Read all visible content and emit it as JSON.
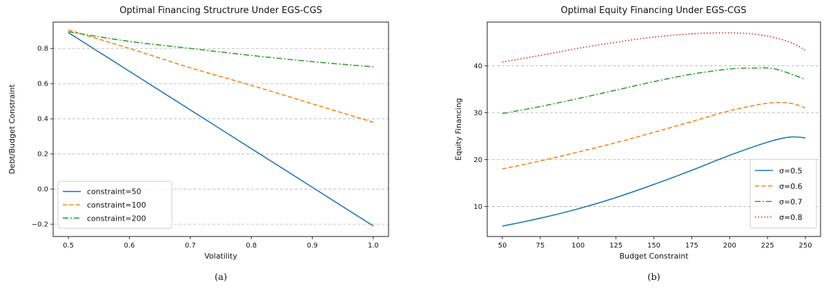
{
  "chart_data": [
    {
      "type": "line",
      "title": "Optimal Financing Structrure Under EGS-CGS",
      "xlabel": "Volatility",
      "ylabel": "Debt/Budget Constraint",
      "caption": "(a)",
      "xlim": [
        0.475,
        1.025
      ],
      "ylim": [
        -0.27,
        0.95
      ],
      "xticks": [
        0.5,
        0.6,
        0.7,
        0.8,
        0.9,
        1.0
      ],
      "xtick_labels": [
        "0.5",
        "0.6",
        "0.7",
        "0.8",
        "0.9",
        "1.0"
      ],
      "yticks": [
        -0.2,
        0.0,
        0.2,
        0.4,
        0.6,
        0.8
      ],
      "ytick_labels": [
        "−0.2",
        "0.0",
        "0.2",
        "0.4",
        "0.6",
        "0.8"
      ],
      "grid": "horizontal dashed",
      "legend": "lower-left",
      "series": [
        {
          "name": "constraint=50",
          "color": "#1f77b4",
          "style": "solid",
          "x": [
            0.5,
            0.6,
            0.7,
            0.8,
            0.9,
            1.0
          ],
          "y": [
            0.89,
            0.67,
            0.45,
            0.23,
            0.01,
            -0.21
          ]
        },
        {
          "name": "constraint=100",
          "color": "#ff7f0e",
          "style": "dashed",
          "x": [
            0.5,
            0.6,
            0.7,
            0.8,
            0.9,
            1.0
          ],
          "y": [
            0.905,
            0.8,
            0.69,
            0.59,
            0.485,
            0.38
          ]
        },
        {
          "name": "constraint=200",
          "color": "#2ca02c",
          "style": "dashdot",
          "x": [
            0.5,
            0.6,
            0.7,
            0.8,
            0.9,
            1.0
          ],
          "y": [
            0.895,
            0.84,
            0.8,
            0.76,
            0.725,
            0.695
          ]
        }
      ]
    },
    {
      "type": "line",
      "title": "Optimal Equity Financing Under EGS-CGS",
      "xlabel": "Budget Constraint",
      "ylabel": "Equity Financing",
      "caption": "(b)",
      "xlim": [
        40,
        260
      ],
      "ylim": [
        3.6,
        49.3
      ],
      "xticks": [
        50,
        75,
        100,
        125,
        150,
        175,
        200,
        225,
        250
      ],
      "xtick_labels": [
        "50",
        "75",
        "100",
        "125",
        "150",
        "175",
        "200",
        "225",
        "250"
      ],
      "yticks": [
        10,
        20,
        30,
        40
      ],
      "ytick_labels": [
        "10",
        "20",
        "30",
        "40"
      ],
      "grid": "horizontal dashed",
      "legend": "lower-right",
      "series": [
        {
          "name": "σ=0.5",
          "color": "#1f77b4",
          "style": "solid",
          "x": [
            50,
            75,
            100,
            125,
            150,
            175,
            200,
            225,
            240,
            250
          ],
          "y": [
            5.8,
            7.5,
            9.5,
            11.9,
            14.7,
            17.7,
            20.9,
            23.7,
            24.8,
            24.6
          ]
        },
        {
          "name": "σ=0.6",
          "color": "#ff7f0e",
          "style": "dashed",
          "x": [
            50,
            75,
            100,
            125,
            150,
            175,
            200,
            225,
            240,
            250
          ],
          "y": [
            18.0,
            19.7,
            21.6,
            23.6,
            25.8,
            28.1,
            30.4,
            32.0,
            32.0,
            31.0
          ]
        },
        {
          "name": "σ=0.7",
          "color": "#2ca02c",
          "style": "dashdot",
          "x": [
            50,
            75,
            100,
            125,
            150,
            175,
            200,
            215,
            230,
            250
          ],
          "y": [
            29.8,
            31.3,
            33.0,
            34.8,
            36.6,
            38.2,
            39.3,
            39.5,
            39.3,
            37.1
          ]
        },
        {
          "name": "σ=0.8",
          "color": "#d62728",
          "style": "dotted",
          "x": [
            50,
            75,
            100,
            125,
            150,
            175,
            195,
            210,
            225,
            240,
            250
          ],
          "y": [
            40.8,
            42.2,
            43.7,
            45.0,
            46.1,
            46.8,
            47.0,
            46.9,
            46.3,
            45.0,
            43.3
          ]
        }
      ]
    }
  ]
}
